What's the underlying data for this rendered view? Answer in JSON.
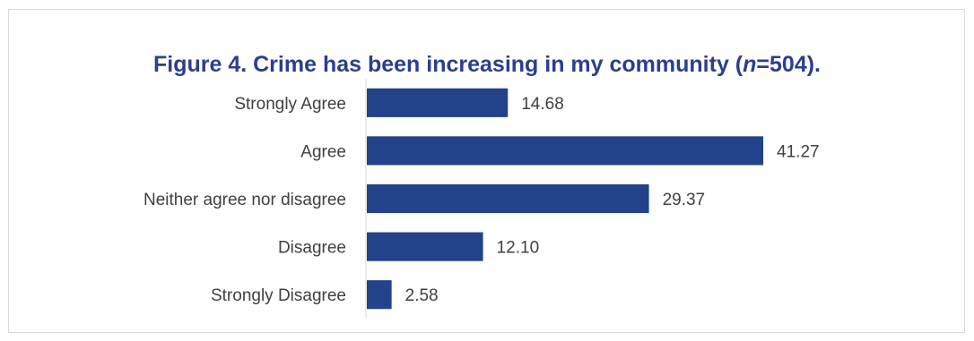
{
  "chart_data": {
    "type": "bar",
    "orientation": "horizontal",
    "title_parts": {
      "before": "Figure 4. Crime has been increasing in my community (",
      "italic": "n",
      "after": "=504)."
    },
    "categories": [
      "Strongly Agree",
      "Agree",
      "Neither agree nor disagree",
      "Disagree",
      "Strongly Disagree"
    ],
    "values": [
      14.68,
      41.27,
      29.37,
      12.1,
      2.58
    ],
    "value_labels": [
      "14.68",
      "41.27",
      "29.37",
      "12.10",
      "2.58"
    ],
    "xlim": [
      0,
      45
    ],
    "grid": false,
    "legend": "none",
    "bar_color": "#22428a",
    "title_color": "#2a3f8f",
    "label_color": "#404040",
    "axis_color": "#d9d9d9"
  }
}
